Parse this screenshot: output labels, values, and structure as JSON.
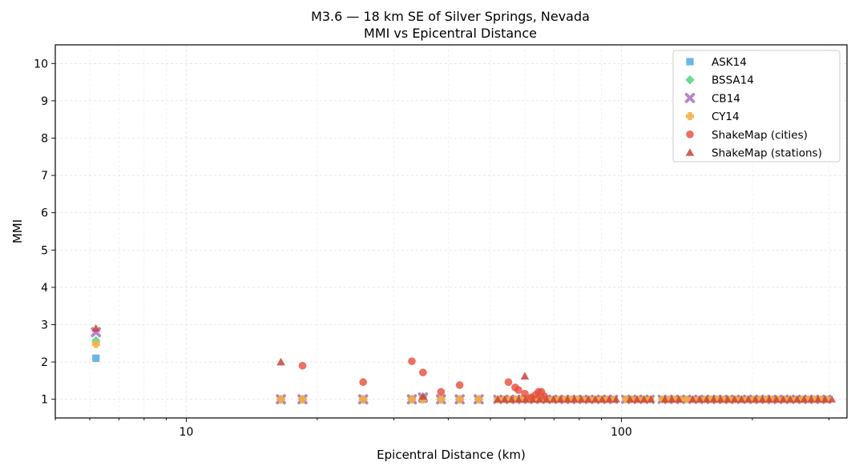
{
  "chart_data": {
    "type": "scatter",
    "title": "M3.6 — 18 km SE of Silver Springs, Nevada",
    "subtitle": "MMI vs Epicentral Distance",
    "xlabel": "Epicentral Distance (km)",
    "ylabel": "MMI",
    "xscale": "log",
    "xlim": [
      5,
      330
    ],
    "ylim": [
      0.5,
      10.5
    ],
    "xticks": [
      {
        "value": 10,
        "label": "10"
      },
      {
        "value": 100,
        "label": "100"
      }
    ],
    "yticks": [
      1,
      2,
      3,
      4,
      5,
      6,
      7,
      8,
      9,
      10
    ],
    "grid": true,
    "legend_position": "top-right",
    "series": [
      {
        "name": "ASK14",
        "marker": "square",
        "color": "#5dade2",
        "points": [
          [
            6.2,
            2.1
          ],
          [
            16.5,
            1.0
          ],
          [
            18.5,
            1.0
          ],
          [
            25.5,
            1.0
          ],
          [
            33,
            1.0
          ],
          [
            35,
            1.0
          ],
          [
            38.5,
            1.0
          ],
          [
            42.5,
            1.0
          ],
          [
            47,
            1.0
          ]
        ]
      },
      {
        "name": "BSSA14",
        "marker": "diamond",
        "color": "#58d68d",
        "points": [
          [
            6.2,
            2.57
          ],
          [
            16.5,
            1.0
          ],
          [
            18.5,
            1.0
          ],
          [
            25.5,
            1.0
          ],
          [
            33,
            1.0
          ],
          [
            35,
            1.0
          ],
          [
            38.5,
            1.0
          ],
          [
            42.5,
            1.0
          ],
          [
            47,
            1.0
          ]
        ]
      },
      {
        "name": "CB14",
        "marker": "x",
        "color": "#af7ac5",
        "points": [
          [
            6.2,
            2.8
          ],
          [
            16.5,
            1.0
          ],
          [
            18.5,
            1.0
          ],
          [
            25.5,
            1.0
          ],
          [
            33,
            1.0
          ],
          [
            35,
            1.05
          ],
          [
            38.5,
            1.0
          ],
          [
            42.5,
            1.0
          ],
          [
            47,
            1.0
          ]
        ]
      },
      {
        "name": "CY14",
        "marker": "plus",
        "color": "#f5b041",
        "points": [
          [
            6.2,
            2.48
          ],
          [
            16.5,
            1.0
          ],
          [
            18.5,
            1.0
          ],
          [
            25.5,
            1.0
          ],
          [
            33,
            1.0
          ],
          [
            35,
            1.0
          ],
          [
            38.5,
            1.0
          ],
          [
            42.5,
            1.0
          ],
          [
            47,
            1.0
          ]
        ]
      },
      {
        "name": "ShakeMap (cities)",
        "marker": "circle",
        "color": "#e74c3c",
        "points": [
          [
            18.5,
            1.9
          ],
          [
            25.5,
            1.46
          ],
          [
            33,
            2.02
          ],
          [
            35,
            1.72
          ],
          [
            38.5,
            1.2
          ],
          [
            42.5,
            1.38
          ],
          [
            55,
            1.46
          ],
          [
            57,
            1.32
          ],
          [
            58,
            1.25
          ],
          [
            60,
            1.15
          ],
          [
            62,
            1.05
          ],
          [
            63.5,
            1.12
          ],
          [
            64.5,
            1.2
          ],
          [
            65.5,
            1.2
          ],
          [
            66.5,
            1.08
          ]
        ]
      },
      {
        "name": "ShakeMap (stations)",
        "marker": "triangle",
        "color": "#cb4335",
        "points": [
          [
            6.2,
            2.9
          ],
          [
            16.5,
            2.0
          ],
          [
            35,
            1.08
          ],
          [
            60,
            1.62
          ]
        ]
      }
    ],
    "dense_band": {
      "x_start": 52,
      "x_end": 300,
      "y": 1.0,
      "step": 0.014,
      "gaps": [
        [
          98,
          102
        ],
        [
          120,
          122
        ],
        [
          138,
          141
        ]
      ],
      "band_series": [
        "ASK14",
        "BSSA14",
        "CB14",
        "CY14"
      ],
      "station_x_start": 52,
      "station_x_end": 312,
      "station_step": 0.016
    }
  }
}
